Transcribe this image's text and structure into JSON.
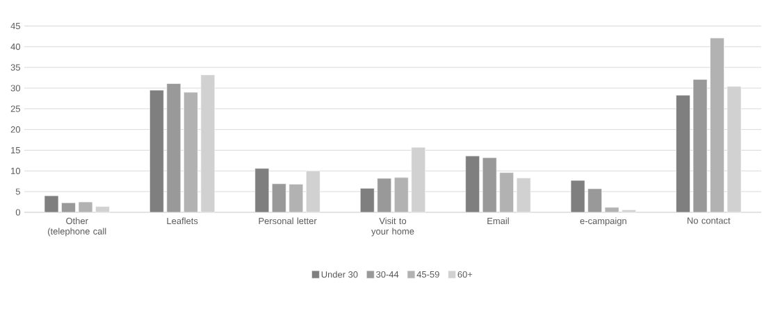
{
  "chart_data": {
    "type": "bar",
    "categories": [
      "Other (telephone call",
      "Leaflets",
      "Personal letter",
      "Visit to your home",
      "Email",
      "e-campaign",
      "No contact"
    ],
    "series": [
      {
        "name": "Under 30",
        "color": "#7f7f7f",
        "values": [
          4.0,
          29.5,
          10.6,
          5.8,
          13.6,
          7.7,
          28.3
        ]
      },
      {
        "name": "30-44",
        "color": "#999999",
        "values": [
          2.3,
          31.1,
          6.9,
          8.2,
          13.2,
          5.7,
          32.1
        ]
      },
      {
        "name": "45-59",
        "color": "#b2b2b2",
        "values": [
          2.5,
          29.0,
          6.8,
          8.4,
          9.6,
          1.2,
          42.1
        ]
      },
      {
        "name": "60+",
        "color": "#d1d1d1",
        "values": [
          1.4,
          33.2,
          10.0,
          15.7,
          8.3,
          0.6,
          30.4
        ]
      }
    ],
    "ylim": [
      0,
      45
    ],
    "yticks": [
      0,
      5,
      10,
      15,
      20,
      25,
      30,
      35,
      40,
      45
    ],
    "grid": "y",
    "legend": "bottom"
  }
}
